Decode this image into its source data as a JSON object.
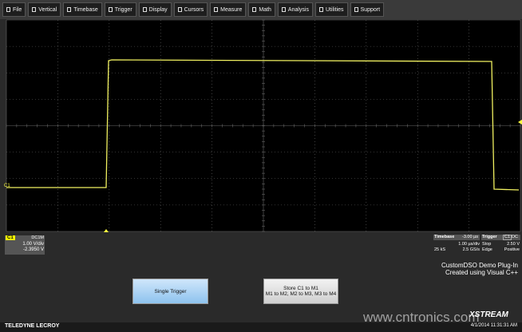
{
  "menu": [
    "File",
    "Vertical",
    "Timebase",
    "Trigger",
    "Display",
    "Cursors",
    "Measure",
    "Math",
    "Analysis",
    "Utilities",
    "Support"
  ],
  "trace_label": "C1",
  "channel": {
    "name": "C1",
    "coupling": "DC1M",
    "scale": "1.00 V/div",
    "offset": "-2.3950 V"
  },
  "timebase": {
    "label": "Timebase",
    "delay": "-3.00 µs",
    "scale": "1.00 µs/div",
    "samples": "25 kS",
    "rate": "2.5 GS/s"
  },
  "trigger": {
    "label": "Trigger",
    "source": "C1",
    "coupling": "DC",
    "mode": "Stop",
    "level": "2.50 V",
    "type": "Edge",
    "slope": "Positive"
  },
  "plugin": [
    "CustomDSO Demo Plug-In",
    "Created using Visual C++"
  ],
  "buttons": [
    {
      "lines": [
        "Single Trigger"
      ]
    },
    {
      "lines": [
        "Store C1 to M1",
        "M1 to M2, M2 to M3, M3 to M4"
      ]
    }
  ],
  "footer": {
    "brand": "TELEDYNE LECROY",
    "logo": "XSTREAM",
    "timestamp": "4/1/2014 11:31:31 AM"
  },
  "watermark": "www.cntronics.com"
}
